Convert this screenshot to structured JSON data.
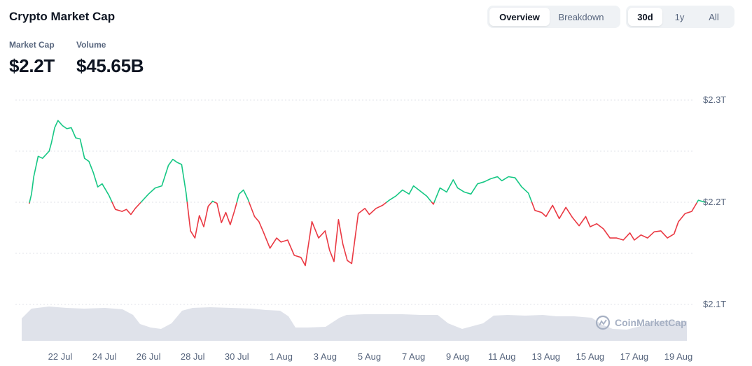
{
  "header": {
    "title": "Crypto Market Cap",
    "view_tabs": [
      {
        "label": "Overview",
        "active": true
      },
      {
        "label": "Breakdown",
        "active": false
      }
    ],
    "range_tabs": [
      {
        "label": "30d",
        "active": true
      },
      {
        "label": "1y",
        "active": false
      },
      {
        "label": "All",
        "active": false
      }
    ]
  },
  "metrics": {
    "market_cap_label": "Market Cap",
    "market_cap_value": "$2.2T",
    "volume_label": "Volume",
    "volume_value": "$45.65B"
  },
  "watermark": "CoinMarketCap",
  "colors": {
    "up": "#16c784",
    "down": "#ea3943",
    "volume": "#c5cbd8",
    "grid": "#e0e3e9",
    "text_muted": "#58667e"
  },
  "chart_data": {
    "type": "line",
    "title": "",
    "baseline": 2.2,
    "ylim": [
      2.1,
      2.3
    ],
    "yticks": [
      "$2.3T",
      "$2.2T",
      "$2.1T"
    ],
    "x_tick_labels": [
      "22 Jul",
      "24 Jul",
      "26 Jul",
      "28 Jul",
      "30 Jul",
      "1 Aug",
      "3 Aug",
      "5 Aug",
      "7 Aug",
      "9 Aug",
      "11 Aug",
      "13 Aug",
      "15 Aug",
      "17 Aug",
      "19 Aug"
    ],
    "grid": true,
    "series": [
      {
        "x": [
          20.6,
          20.7,
          20.8,
          21.0,
          21.2,
          21.5,
          21.6,
          21.75,
          21.9,
          22.1,
          22.3,
          22.5,
          22.7,
          22.9,
          23.1,
          23.3,
          23.5,
          23.7,
          23.9,
          24.2,
          24.5,
          24.8,
          25.0,
          25.2,
          25.4,
          25.7,
          26.0,
          26.3,
          26.6,
          26.9,
          27.1,
          27.3,
          27.5,
          27.7,
          27.9,
          28.1,
          28.3,
          28.5,
          28.7,
          28.9,
          29.1,
          29.3,
          29.5,
          29.7,
          29.9,
          30.1,
          30.3,
          30.5,
          30.8,
          31.0,
          31.2,
          31.5,
          31.8,
          32.0,
          32.3,
          32.6,
          32.9,
          33.1,
          33.4,
          33.7,
          34.0,
          34.2,
          34.4,
          34.6,
          34.8,
          35.0,
          35.2,
          35.5,
          35.8,
          36.0,
          36.3,
          36.6,
          36.9,
          37.2,
          37.5,
          37.8,
          38.0,
          38.3,
          38.6,
          38.9,
          39.2,
          39.5,
          39.8,
          40.0,
          40.3,
          40.6,
          40.9,
          41.2,
          41.5,
          41.8,
          42.0,
          42.3,
          42.6,
          42.9,
          43.2,
          43.5,
          43.8,
          44.0,
          44.3,
          44.6,
          44.9,
          45.2,
          45.5,
          45.8,
          46.0,
          46.3,
          46.6,
          46.9,
          47.2,
          47.5,
          47.8,
          48.0,
          48.3,
          48.6,
          48.9,
          49.2,
          49.5,
          49.8,
          50.0,
          50.3,
          50.6,
          50.9,
          51.2
        ],
        "y": [
          2.199,
          2.208,
          2.225,
          2.245,
          2.243,
          2.25,
          2.258,
          2.273,
          2.28,
          2.275,
          2.272,
          2.273,
          2.263,
          2.262,
          2.243,
          2.24,
          2.229,
          2.215,
          2.218,
          2.207,
          2.193,
          2.191,
          2.193,
          2.188,
          2.194,
          2.201,
          2.208,
          2.214,
          2.216,
          2.236,
          2.242,
          2.239,
          2.237,
          2.209,
          2.172,
          2.165,
          2.187,
          2.176,
          2.196,
          2.201,
          2.199,
          2.18,
          2.19,
          2.178,
          2.192,
          2.208,
          2.212,
          2.203,
          2.186,
          2.181,
          2.171,
          2.155,
          2.165,
          2.161,
          2.163,
          2.148,
          2.146,
          2.138,
          2.181,
          2.165,
          2.172,
          2.153,
          2.142,
          2.183,
          2.159,
          2.143,
          2.14,
          2.189,
          2.194,
          2.188,
          2.194,
          2.197,
          2.202,
          2.206,
          2.212,
          2.208,
          2.216,
          2.211,
          2.206,
          2.198,
          2.214,
          2.21,
          2.222,
          2.214,
          2.21,
          2.208,
          2.218,
          2.22,
          2.223,
          2.225,
          2.221,
          2.225,
          2.224,
          2.215,
          2.209,
          2.192,
          2.19,
          2.186,
          2.197,
          2.184,
          2.195,
          2.185,
          2.177,
          2.186,
          2.176,
          2.179,
          2.174,
          2.165,
          2.165,
          2.163,
          2.17,
          2.163,
          2.168,
          2.165,
          2.171,
          2.172,
          2.165,
          2.169,
          2.181,
          2.189,
          2.191,
          2.202,
          2.2
        ]
      }
    ]
  }
}
